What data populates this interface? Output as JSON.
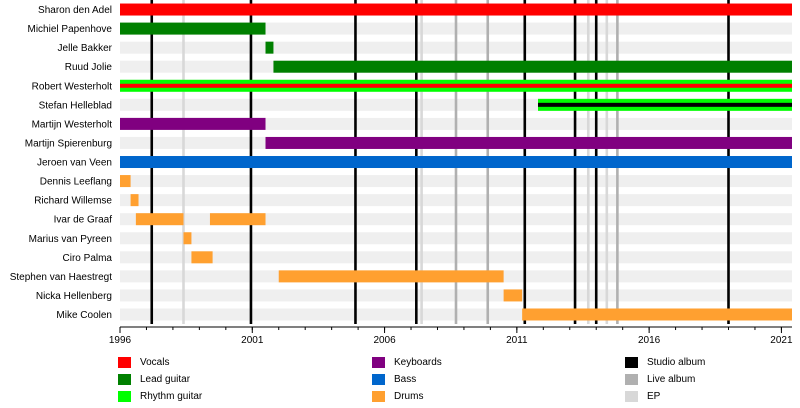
{
  "chart_data": {
    "type": "timeline",
    "x_range": [
      1996,
      2021.4
    ],
    "x_ticks": [
      "1996",
      "2001",
      "2006",
      "2011",
      "2016",
      "2021"
    ],
    "members": [
      {
        "name": "Sharon den Adel",
        "spans": [
          {
            "role": "Vocals",
            "start": 1996,
            "end": 2021.4
          }
        ]
      },
      {
        "name": "Michiel Papenhove",
        "spans": [
          {
            "role": "Lead guitar",
            "start": 1996,
            "end": 2001.5
          }
        ]
      },
      {
        "name": "Jelle Bakker",
        "spans": [
          {
            "role": "Lead guitar",
            "start": 2001.5,
            "end": 2001.8
          }
        ]
      },
      {
        "name": "Ruud Jolie",
        "spans": [
          {
            "role": "Lead guitar",
            "start": 2001.8,
            "end": 2021.4
          }
        ]
      },
      {
        "name": "Robert Westerholt",
        "spans": [
          {
            "role": "Rhythm guitar",
            "start": 1996,
            "end": 2021.4,
            "inner": "Vocals"
          }
        ]
      },
      {
        "name": "Stefan Helleblad",
        "spans": [
          {
            "role": "Rhythm guitar",
            "start": 2011.8,
            "end": 2021.4,
            "inner": "Studio album"
          }
        ]
      },
      {
        "name": "Martijn Westerholt",
        "spans": [
          {
            "role": "Keyboards",
            "start": 1996,
            "end": 2001.5
          }
        ]
      },
      {
        "name": "Martijn Spierenburg",
        "spans": [
          {
            "role": "Keyboards",
            "start": 2001.5,
            "end": 2021.4
          }
        ]
      },
      {
        "name": "Jeroen van Veen",
        "spans": [
          {
            "role": "Bass",
            "start": 1996,
            "end": 2021.4
          }
        ]
      },
      {
        "name": "Dennis Leeflang",
        "spans": [
          {
            "role": "Drums",
            "start": 1996,
            "end": 1996.4
          }
        ]
      },
      {
        "name": "Richard Willemse",
        "spans": [
          {
            "role": "Drums",
            "start": 1996.4,
            "end": 1996.7
          }
        ]
      },
      {
        "name": "Ivar de Graaf",
        "spans": [
          {
            "role": "Drums",
            "start": 1996.6,
            "end": 1998.4
          },
          {
            "role": "Drums",
            "start": 1999.4,
            "end": 2001.5
          }
        ]
      },
      {
        "name": "Marius van Pyreen",
        "spans": [
          {
            "role": "Drums",
            "start": 1998.4,
            "end": 1998.7
          }
        ]
      },
      {
        "name": "Ciro Palma",
        "spans": [
          {
            "role": "Drums",
            "start": 1998.7,
            "end": 1999.5
          }
        ]
      },
      {
        "name": "Stephen van Haestregt",
        "spans": [
          {
            "role": "Drums",
            "start": 2002,
            "end": 2010.5
          }
        ]
      },
      {
        "name": "Nicka Hellenberg",
        "spans": [
          {
            "role": "Drums",
            "start": 2010.5,
            "end": 2011.2
          }
        ]
      },
      {
        "name": "Mike Coolen",
        "spans": [
          {
            "role": "Drums",
            "start": 2011.2,
            "end": 2021.4
          }
        ]
      }
    ],
    "events": [
      {
        "type": "Studio album",
        "x": 1997.2
      },
      {
        "type": "EP",
        "x": 1998.4
      },
      {
        "type": "Studio album",
        "x": 2000.95
      },
      {
        "type": "Studio album",
        "x": 2004.9
      },
      {
        "type": "Studio album",
        "x": 2007.2
      },
      {
        "type": "EP",
        "x": 2007.4
      },
      {
        "type": "Live album",
        "x": 2008.7
      },
      {
        "type": "Live album",
        "x": 2009.9
      },
      {
        "type": "Studio album",
        "x": 2011.3
      },
      {
        "type": "Studio album",
        "x": 2013.2
      },
      {
        "type": "EP",
        "x": 2013.7
      },
      {
        "type": "Studio album",
        "x": 2014.0
      },
      {
        "type": "EP",
        "x": 2014.4
      },
      {
        "type": "Live album",
        "x": 2014.8
      },
      {
        "type": "Studio album",
        "x": 2019.0
      }
    ],
    "legend": [
      {
        "label": "Vocals",
        "color": "#ff0000"
      },
      {
        "label": "Lead guitar",
        "color": "#008000"
      },
      {
        "label": "Rhythm guitar",
        "color": "#00ff00"
      },
      {
        "label": "Keyboards",
        "color": "#800080"
      },
      {
        "label": "Bass",
        "color": "#0066cc"
      },
      {
        "label": "Drums",
        "color": "#ffa030"
      },
      {
        "label": "Studio album",
        "color": "#000000"
      },
      {
        "label": "Live album",
        "color": "#b0b0b0"
      },
      {
        "label": "EP",
        "color": "#d8d8d8"
      }
    ],
    "legend_placement": "bottom"
  }
}
